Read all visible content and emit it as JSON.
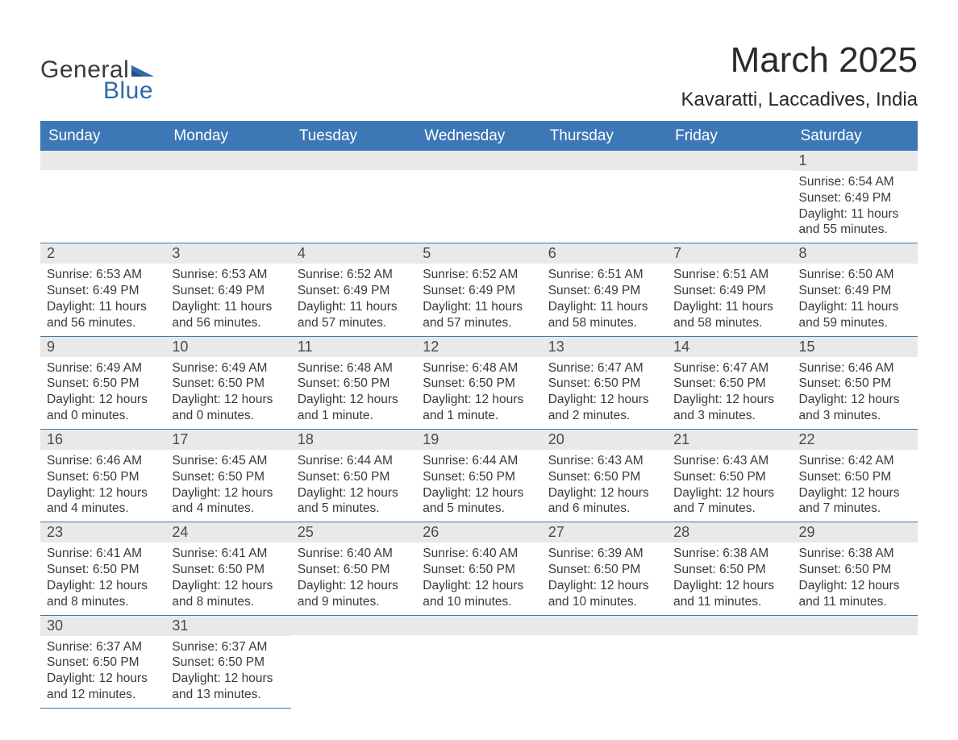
{
  "logo": {
    "general": "General",
    "blue": "Blue",
    "flag_color": "#2e6ba8"
  },
  "header": {
    "month_title": "March 2025",
    "location": "Kavaratti, Laccadives, India"
  },
  "colors": {
    "header_bg": "#3d77b6",
    "header_text": "#ffffff",
    "daynum_bg": "#e9e9e9",
    "border": "#3d77b6",
    "body_text": "#3a3a3a"
  },
  "days_of_week": [
    "Sunday",
    "Monday",
    "Tuesday",
    "Wednesday",
    "Thursday",
    "Friday",
    "Saturday"
  ],
  "weeks": [
    [
      {
        "n": "",
        "sunrise": "",
        "sunset": "",
        "daylight1": "",
        "daylight2": ""
      },
      {
        "n": "",
        "sunrise": "",
        "sunset": "",
        "daylight1": "",
        "daylight2": ""
      },
      {
        "n": "",
        "sunrise": "",
        "sunset": "",
        "daylight1": "",
        "daylight2": ""
      },
      {
        "n": "",
        "sunrise": "",
        "sunset": "",
        "daylight1": "",
        "daylight2": ""
      },
      {
        "n": "",
        "sunrise": "",
        "sunset": "",
        "daylight1": "",
        "daylight2": ""
      },
      {
        "n": "",
        "sunrise": "",
        "sunset": "",
        "daylight1": "",
        "daylight2": ""
      },
      {
        "n": "1",
        "sunrise": "Sunrise: 6:54 AM",
        "sunset": "Sunset: 6:49 PM",
        "daylight1": "Daylight: 11 hours",
        "daylight2": "and 55 minutes."
      }
    ],
    [
      {
        "n": "2",
        "sunrise": "Sunrise: 6:53 AM",
        "sunset": "Sunset: 6:49 PM",
        "daylight1": "Daylight: 11 hours",
        "daylight2": "and 56 minutes."
      },
      {
        "n": "3",
        "sunrise": "Sunrise: 6:53 AM",
        "sunset": "Sunset: 6:49 PM",
        "daylight1": "Daylight: 11 hours",
        "daylight2": "and 56 minutes."
      },
      {
        "n": "4",
        "sunrise": "Sunrise: 6:52 AM",
        "sunset": "Sunset: 6:49 PM",
        "daylight1": "Daylight: 11 hours",
        "daylight2": "and 57 minutes."
      },
      {
        "n": "5",
        "sunrise": "Sunrise: 6:52 AM",
        "sunset": "Sunset: 6:49 PM",
        "daylight1": "Daylight: 11 hours",
        "daylight2": "and 57 minutes."
      },
      {
        "n": "6",
        "sunrise": "Sunrise: 6:51 AM",
        "sunset": "Sunset: 6:49 PM",
        "daylight1": "Daylight: 11 hours",
        "daylight2": "and 58 minutes."
      },
      {
        "n": "7",
        "sunrise": "Sunrise: 6:51 AM",
        "sunset": "Sunset: 6:49 PM",
        "daylight1": "Daylight: 11 hours",
        "daylight2": "and 58 minutes."
      },
      {
        "n": "8",
        "sunrise": "Sunrise: 6:50 AM",
        "sunset": "Sunset: 6:49 PM",
        "daylight1": "Daylight: 11 hours",
        "daylight2": "and 59 minutes."
      }
    ],
    [
      {
        "n": "9",
        "sunrise": "Sunrise: 6:49 AM",
        "sunset": "Sunset: 6:50 PM",
        "daylight1": "Daylight: 12 hours",
        "daylight2": "and 0 minutes."
      },
      {
        "n": "10",
        "sunrise": "Sunrise: 6:49 AM",
        "sunset": "Sunset: 6:50 PM",
        "daylight1": "Daylight: 12 hours",
        "daylight2": "and 0 minutes."
      },
      {
        "n": "11",
        "sunrise": "Sunrise: 6:48 AM",
        "sunset": "Sunset: 6:50 PM",
        "daylight1": "Daylight: 12 hours",
        "daylight2": "and 1 minute."
      },
      {
        "n": "12",
        "sunrise": "Sunrise: 6:48 AM",
        "sunset": "Sunset: 6:50 PM",
        "daylight1": "Daylight: 12 hours",
        "daylight2": "and 1 minute."
      },
      {
        "n": "13",
        "sunrise": "Sunrise: 6:47 AM",
        "sunset": "Sunset: 6:50 PM",
        "daylight1": "Daylight: 12 hours",
        "daylight2": "and 2 minutes."
      },
      {
        "n": "14",
        "sunrise": "Sunrise: 6:47 AM",
        "sunset": "Sunset: 6:50 PM",
        "daylight1": "Daylight: 12 hours",
        "daylight2": "and 3 minutes."
      },
      {
        "n": "15",
        "sunrise": "Sunrise: 6:46 AM",
        "sunset": "Sunset: 6:50 PM",
        "daylight1": "Daylight: 12 hours",
        "daylight2": "and 3 minutes."
      }
    ],
    [
      {
        "n": "16",
        "sunrise": "Sunrise: 6:46 AM",
        "sunset": "Sunset: 6:50 PM",
        "daylight1": "Daylight: 12 hours",
        "daylight2": "and 4 minutes."
      },
      {
        "n": "17",
        "sunrise": "Sunrise: 6:45 AM",
        "sunset": "Sunset: 6:50 PM",
        "daylight1": "Daylight: 12 hours",
        "daylight2": "and 4 minutes."
      },
      {
        "n": "18",
        "sunrise": "Sunrise: 6:44 AM",
        "sunset": "Sunset: 6:50 PM",
        "daylight1": "Daylight: 12 hours",
        "daylight2": "and 5 minutes."
      },
      {
        "n": "19",
        "sunrise": "Sunrise: 6:44 AM",
        "sunset": "Sunset: 6:50 PM",
        "daylight1": "Daylight: 12 hours",
        "daylight2": "and 5 minutes."
      },
      {
        "n": "20",
        "sunrise": "Sunrise: 6:43 AM",
        "sunset": "Sunset: 6:50 PM",
        "daylight1": "Daylight: 12 hours",
        "daylight2": "and 6 minutes."
      },
      {
        "n": "21",
        "sunrise": "Sunrise: 6:43 AM",
        "sunset": "Sunset: 6:50 PM",
        "daylight1": "Daylight: 12 hours",
        "daylight2": "and 7 minutes."
      },
      {
        "n": "22",
        "sunrise": "Sunrise: 6:42 AM",
        "sunset": "Sunset: 6:50 PM",
        "daylight1": "Daylight: 12 hours",
        "daylight2": "and 7 minutes."
      }
    ],
    [
      {
        "n": "23",
        "sunrise": "Sunrise: 6:41 AM",
        "sunset": "Sunset: 6:50 PM",
        "daylight1": "Daylight: 12 hours",
        "daylight2": "and 8 minutes."
      },
      {
        "n": "24",
        "sunrise": "Sunrise: 6:41 AM",
        "sunset": "Sunset: 6:50 PM",
        "daylight1": "Daylight: 12 hours",
        "daylight2": "and 8 minutes."
      },
      {
        "n": "25",
        "sunrise": "Sunrise: 6:40 AM",
        "sunset": "Sunset: 6:50 PM",
        "daylight1": "Daylight: 12 hours",
        "daylight2": "and 9 minutes."
      },
      {
        "n": "26",
        "sunrise": "Sunrise: 6:40 AM",
        "sunset": "Sunset: 6:50 PM",
        "daylight1": "Daylight: 12 hours",
        "daylight2": "and 10 minutes."
      },
      {
        "n": "27",
        "sunrise": "Sunrise: 6:39 AM",
        "sunset": "Sunset: 6:50 PM",
        "daylight1": "Daylight: 12 hours",
        "daylight2": "and 10 minutes."
      },
      {
        "n": "28",
        "sunrise": "Sunrise: 6:38 AM",
        "sunset": "Sunset: 6:50 PM",
        "daylight1": "Daylight: 12 hours",
        "daylight2": "and 11 minutes."
      },
      {
        "n": "29",
        "sunrise": "Sunrise: 6:38 AM",
        "sunset": "Sunset: 6:50 PM",
        "daylight1": "Daylight: 12 hours",
        "daylight2": "and 11 minutes."
      }
    ],
    [
      {
        "n": "30",
        "sunrise": "Sunrise: 6:37 AM",
        "sunset": "Sunset: 6:50 PM",
        "daylight1": "Daylight: 12 hours",
        "daylight2": "and 12 minutes."
      },
      {
        "n": "31",
        "sunrise": "Sunrise: 6:37 AM",
        "sunset": "Sunset: 6:50 PM",
        "daylight1": "Daylight: 12 hours",
        "daylight2": "and 13 minutes."
      },
      {
        "n": "",
        "sunrise": "",
        "sunset": "",
        "daylight1": "",
        "daylight2": ""
      },
      {
        "n": "",
        "sunrise": "",
        "sunset": "",
        "daylight1": "",
        "daylight2": ""
      },
      {
        "n": "",
        "sunrise": "",
        "sunset": "",
        "daylight1": "",
        "daylight2": ""
      },
      {
        "n": "",
        "sunrise": "",
        "sunset": "",
        "daylight1": "",
        "daylight2": ""
      },
      {
        "n": "",
        "sunrise": "",
        "sunset": "",
        "daylight1": "",
        "daylight2": ""
      }
    ]
  ]
}
